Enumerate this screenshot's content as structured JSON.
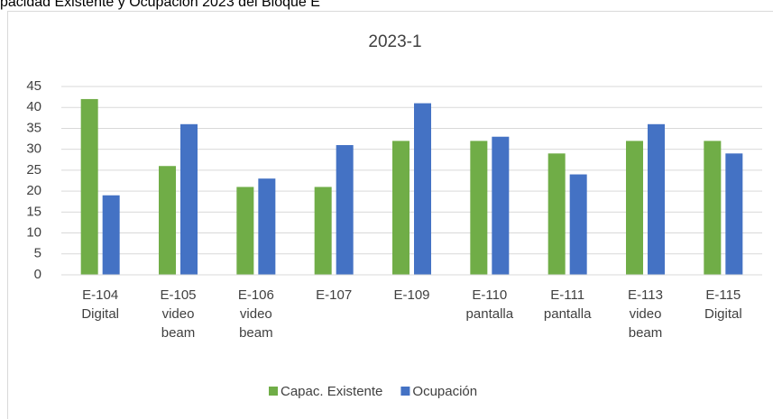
{
  "caption": "pacidad Existente y Ocupación 2023 del Bloque E",
  "chart_data": {
    "type": "bar",
    "title": "2023-1",
    "categories": [
      "E-104 Digital",
      "E-105 video beam",
      "E-106 video beam",
      "E-107",
      "E-109",
      "E-110 pantalla",
      "E-111 pantalla",
      "E-113 video beam",
      "E-115 Digital"
    ],
    "series": [
      {
        "name": "Capac. Existente",
        "color": "#70ad47",
        "values": [
          42,
          26,
          21,
          21,
          32,
          32,
          29,
          32,
          32
        ]
      },
      {
        "name": "Ocupación",
        "color": "#4472c4",
        "values": [
          19,
          36,
          23,
          31,
          41,
          33,
          24,
          36,
          29
        ]
      }
    ],
    "ylim": [
      0,
      45
    ],
    "yticks": [
      0,
      5,
      10,
      15,
      20,
      25,
      30,
      35,
      40,
      45
    ],
    "grid": true,
    "legend": "bottom"
  }
}
